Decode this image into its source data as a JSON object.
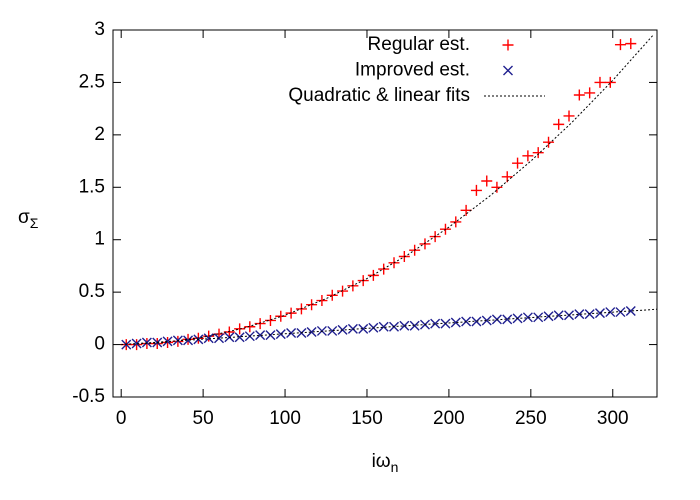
{
  "chart_data": {
    "type": "scatter",
    "xlabel": "iω",
    "xlabel_sub": "n",
    "ylabel": "σ",
    "ylabel_sub": "Σ",
    "xlim": [
      -5,
      327
    ],
    "ylim": [
      -0.5,
      3
    ],
    "xticks": [
      0,
      50,
      100,
      150,
      200,
      250,
      300
    ],
    "yticks": [
      -0.5,
      0,
      0.5,
      1,
      1.5,
      2,
      2.5,
      3
    ],
    "grid": false,
    "legend": "top-right",
    "series": [
      {
        "name": "Regular est.",
        "color": "#ff0000",
        "marker": "plus",
        "x": [
          3.1,
          9.4,
          15.7,
          22.0,
          28.3,
          34.6,
          40.8,
          47.1,
          53.4,
          59.7,
          66.0,
          72.3,
          78.5,
          84.8,
          91.1,
          97.4,
          103.7,
          110.0,
          116.2,
          122.5,
          128.8,
          135.1,
          141.4,
          147.7,
          153.9,
          160.2,
          166.5,
          172.8,
          179.1,
          185.4,
          191.6,
          197.9,
          204.2,
          210.5,
          216.8,
          223.1,
          229.3,
          235.6,
          241.9,
          248.2,
          254.5,
          260.8,
          267.0,
          273.3,
          279.6,
          285.9,
          292.2,
          298.5,
          304.7,
          311.0
        ],
        "values": [
          0,
          0,
          0.01,
          0.01,
          0.02,
          0.03,
          0.05,
          0.06,
          0.08,
          0.1,
          0.12,
          0.15,
          0.17,
          0.2,
          0.23,
          0.27,
          0.3,
          0.34,
          0.38,
          0.42,
          0.47,
          0.51,
          0.56,
          0.61,
          0.66,
          0.72,
          0.78,
          0.84,
          0.9,
          0.96,
          1.03,
          1.1,
          1.17,
          1.28,
          1.47,
          1.56,
          1.5,
          1.6,
          1.73,
          1.8,
          1.83,
          1.93,
          2.1,
          2.18,
          2.38,
          2.4,
          2.5,
          2.5,
          2.86,
          2.87
        ]
      },
      {
        "name": "Improved est.",
        "color": "#1f1f8f",
        "marker": "cross",
        "x": [
          3.1,
          9.4,
          15.7,
          22.0,
          28.3,
          34.6,
          40.8,
          47.1,
          53.4,
          59.7,
          66.0,
          72.3,
          78.5,
          84.8,
          91.1,
          97.4,
          103.7,
          110.0,
          116.2,
          122.5,
          128.8,
          135.1,
          141.4,
          147.7,
          153.9,
          160.2,
          166.5,
          172.8,
          179.1,
          185.4,
          191.6,
          197.9,
          204.2,
          210.5,
          216.8,
          223.1,
          229.3,
          235.6,
          241.9,
          248.2,
          254.5,
          260.8,
          267.0,
          273.3,
          279.6,
          285.9,
          292.2,
          298.5,
          304.7,
          311.0
        ],
        "values": [
          0,
          0.01,
          0.02,
          0.02,
          0.03,
          0.04,
          0.04,
          0.05,
          0.06,
          0.06,
          0.07,
          0.07,
          0.08,
          0.09,
          0.09,
          0.1,
          0.11,
          0.11,
          0.12,
          0.13,
          0.13,
          0.14,
          0.15,
          0.15,
          0.16,
          0.17,
          0.17,
          0.18,
          0.18,
          0.19,
          0.2,
          0.2,
          0.21,
          0.22,
          0.22,
          0.23,
          0.24,
          0.24,
          0.25,
          0.26,
          0.26,
          0.27,
          0.28,
          0.28,
          0.29,
          0.29,
          0.3,
          0.31,
          0.31,
          0.32
        ]
      },
      {
        "name": "Quadratic & linear fits",
        "color": "#000000",
        "marker": "line",
        "x": [
          0,
          25,
          50,
          75,
          100,
          125,
          150,
          175,
          200,
          225,
          250,
          275,
          300,
          325,
          325,
          0,
          327
        ],
        "values": [
          0,
          0.0175,
          0.07,
          0.1575,
          0.28,
          0.4375,
          0.63,
          0.8575,
          1.12,
          1.4175,
          1.75,
          2.1175,
          2.52,
          2.9575,
          null,
          0,
          0.337
        ]
      }
    ]
  }
}
